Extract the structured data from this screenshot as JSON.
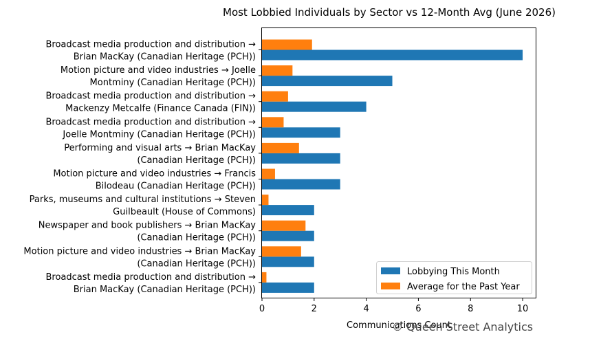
{
  "chart_data": {
    "type": "bar",
    "orientation": "horizontal",
    "title": "Most Lobbied Individuals by Sector vs 12-Month Avg (June 2026)",
    "xlabel": "Communications Count",
    "ylabel": "",
    "xlim": [
      0,
      10.5
    ],
    "xticks": [
      0,
      2,
      4,
      6,
      8,
      10
    ],
    "legend_position": "lower-right",
    "categories": [
      [
        "Broadcast media production and distribution →",
        "Brian MacKay (Canadian Heritage (PCH))"
      ],
      [
        "Motion picture and video industries → Joelle",
        "Montminy (Canadian Heritage (PCH))"
      ],
      [
        "Broadcast media production and distribution →",
        "Mackenzy Metcalfe (Finance Canada (FIN))"
      ],
      [
        "Broadcast media production and distribution →",
        "Joelle Montminy (Canadian Heritage (PCH))"
      ],
      [
        "Performing and visual arts → Brian MacKay",
        "(Canadian Heritage (PCH))"
      ],
      [
        "Motion picture and video industries → Francis",
        "Bilodeau (Canadian Heritage (PCH))"
      ],
      [
        "Parks, museums and cultural institutions → Steven",
        "Guilbeault (House of Commons)"
      ],
      [
        "Newspaper and book publishers → Brian MacKay",
        "(Canadian Heritage (PCH))"
      ],
      [
        "Motion picture and video industries → Brian MacKay",
        "(Canadian Heritage (PCH))"
      ],
      [
        "Broadcast media production and distribution →",
        "Brian MacKay (Canadian Heritage (PCH))"
      ]
    ],
    "series": [
      {
        "name": "Lobbying This Month",
        "color": "#1f77b4",
        "values": [
          10,
          5,
          4,
          3,
          3,
          3,
          2,
          2,
          2,
          2
        ]
      },
      {
        "name": "Average for the Past Year",
        "color": "#ff7f0e",
        "values": [
          1.92,
          1.17,
          1.0,
          0.83,
          1.42,
          0.5,
          0.25,
          1.67,
          1.5,
          0.17
        ]
      }
    ]
  },
  "watermark": "© Queen Street Analytics"
}
